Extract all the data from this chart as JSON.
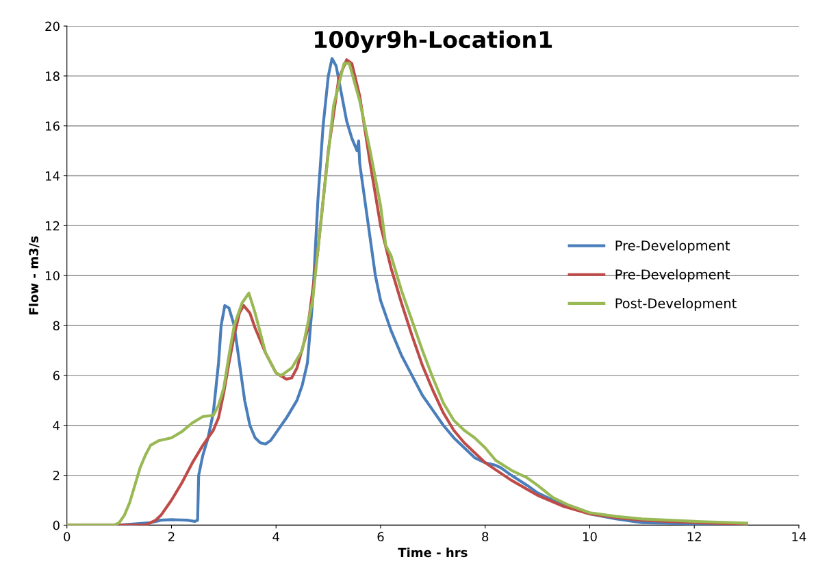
{
  "chart_data": {
    "type": "line",
    "title": "100yr9h-Location1",
    "xlabel": "Time - hrs",
    "ylabel": "Flow - m3/s",
    "xlim": [
      0,
      14
    ],
    "xticks": [
      0,
      2,
      4,
      6,
      8,
      10,
      12,
      14
    ],
    "ylim": [
      0,
      20
    ],
    "yticks": [
      0,
      2,
      4,
      6,
      8,
      10,
      12,
      14,
      16,
      18,
      20
    ],
    "grid": "y",
    "legend": "right",
    "marker": "none",
    "line_style": "solid",
    "series": [
      {
        "name": "Pre-Development",
        "color": "#4a7ebb",
        "x": [
          0,
          1.0,
          1.3,
          1.6,
          1.8,
          2.0,
          2.3,
          2.45,
          2.5,
          2.52,
          2.6,
          2.7,
          2.8,
          2.9,
          2.95,
          3.02,
          3.1,
          3.2,
          3.3,
          3.4,
          3.5,
          3.6,
          3.7,
          3.8,
          3.9,
          4.0,
          4.2,
          4.4,
          4.5,
          4.6,
          4.7,
          4.8,
          4.9,
          5.0,
          5.07,
          5.15,
          5.25,
          5.35,
          5.45,
          5.55,
          5.58,
          5.6,
          5.7,
          5.8,
          5.9,
          6.0,
          6.2,
          6.4,
          6.6,
          6.8,
          7.0,
          7.2,
          7.4,
          7.6,
          7.8,
          8.0,
          8.2,
          8.3,
          8.5,
          8.8,
          9.0,
          9.5,
          10,
          10.5,
          11,
          12,
          13
        ],
        "values": [
          0,
          0,
          0.05,
          0.1,
          0.2,
          0.22,
          0.2,
          0.15,
          0.2,
          2.0,
          2.8,
          3.5,
          4.5,
          6.5,
          8.0,
          8.8,
          8.7,
          8.0,
          6.5,
          5.0,
          4.0,
          3.5,
          3.3,
          3.25,
          3.4,
          3.7,
          4.3,
          5.0,
          5.6,
          6.5,
          9,
          13,
          16,
          18.0,
          18.7,
          18.4,
          17.3,
          16.2,
          15.5,
          15.0,
          15.4,
          14.5,
          13,
          11.5,
          10,
          9,
          7.8,
          6.8,
          6.0,
          5.2,
          4.6,
          4.0,
          3.5,
          3.1,
          2.7,
          2.5,
          2.4,
          2.3,
          2.0,
          1.6,
          1.3,
          0.8,
          0.45,
          0.25,
          0.1,
          0.05,
          0.05
        ]
      },
      {
        "name": "Pre-Development",
        "color": "#be4b48",
        "x": [
          0,
          1.5,
          1.7,
          1.8,
          2.0,
          2.2,
          2.4,
          2.6,
          2.8,
          2.9,
          3.0,
          3.1,
          3.2,
          3.3,
          3.38,
          3.5,
          3.6,
          3.8,
          4.0,
          4.2,
          4.3,
          4.4,
          4.6,
          4.8,
          5.0,
          5.2,
          5.35,
          5.45,
          5.6,
          5.8,
          6.0,
          6.2,
          6.4,
          6.6,
          6.8,
          7.0,
          7.2,
          7.4,
          7.6,
          7.8,
          8.0,
          8.5,
          9.0,
          9.5,
          10,
          10.5,
          11,
          12,
          13
        ],
        "values": [
          0,
          0,
          0.2,
          0.4,
          1.0,
          1.7,
          2.5,
          3.2,
          3.8,
          4.3,
          5.3,
          6.5,
          7.6,
          8.5,
          8.8,
          8.5,
          7.9,
          6.9,
          6.1,
          5.85,
          5.9,
          6.3,
          7.8,
          11,
          15,
          17.9,
          18.65,
          18.5,
          17.2,
          14.5,
          12,
          10.3,
          8.9,
          7.6,
          6.4,
          5.4,
          4.5,
          3.8,
          3.3,
          2.9,
          2.5,
          1.8,
          1.2,
          0.75,
          0.45,
          0.3,
          0.2,
          0.1,
          0.05
        ]
      },
      {
        "name": "Post-Development",
        "color": "#98b954",
        "x": [
          0,
          0.9,
          1.0,
          1.1,
          1.2,
          1.3,
          1.4,
          1.5,
          1.6,
          1.75,
          2.0,
          2.2,
          2.4,
          2.6,
          2.8,
          2.9,
          3.0,
          3.1,
          3.2,
          3.35,
          3.48,
          3.6,
          3.8,
          4.0,
          4.1,
          4.3,
          4.5,
          4.7,
          4.9,
          5.1,
          5.3,
          5.4,
          5.6,
          5.8,
          6.0,
          6.1,
          6.2,
          6.4,
          6.6,
          6.8,
          7.0,
          7.2,
          7.4,
          7.6,
          7.8,
          8.0,
          8.2,
          8.5,
          8.8,
          9.0,
          9.3,
          9.6,
          10,
          10.5,
          11,
          12,
          13
        ],
        "values": [
          0,
          0,
          0.1,
          0.4,
          0.9,
          1.6,
          2.3,
          2.8,
          3.2,
          3.38,
          3.5,
          3.75,
          4.1,
          4.35,
          4.4,
          4.8,
          5.5,
          6.8,
          8.0,
          8.9,
          9.3,
          8.5,
          6.9,
          6.1,
          6.0,
          6.3,
          7.0,
          9.0,
          13,
          16.8,
          18.5,
          18.5,
          17.0,
          15,
          12.8,
          11.2,
          10.8,
          9.4,
          8.2,
          7.0,
          5.9,
          4.9,
          4.2,
          3.8,
          3.5,
          3.1,
          2.6,
          2.2,
          1.9,
          1.6,
          1.1,
          0.8,
          0.5,
          0.35,
          0.25,
          0.15,
          0.08
        ]
      }
    ]
  }
}
